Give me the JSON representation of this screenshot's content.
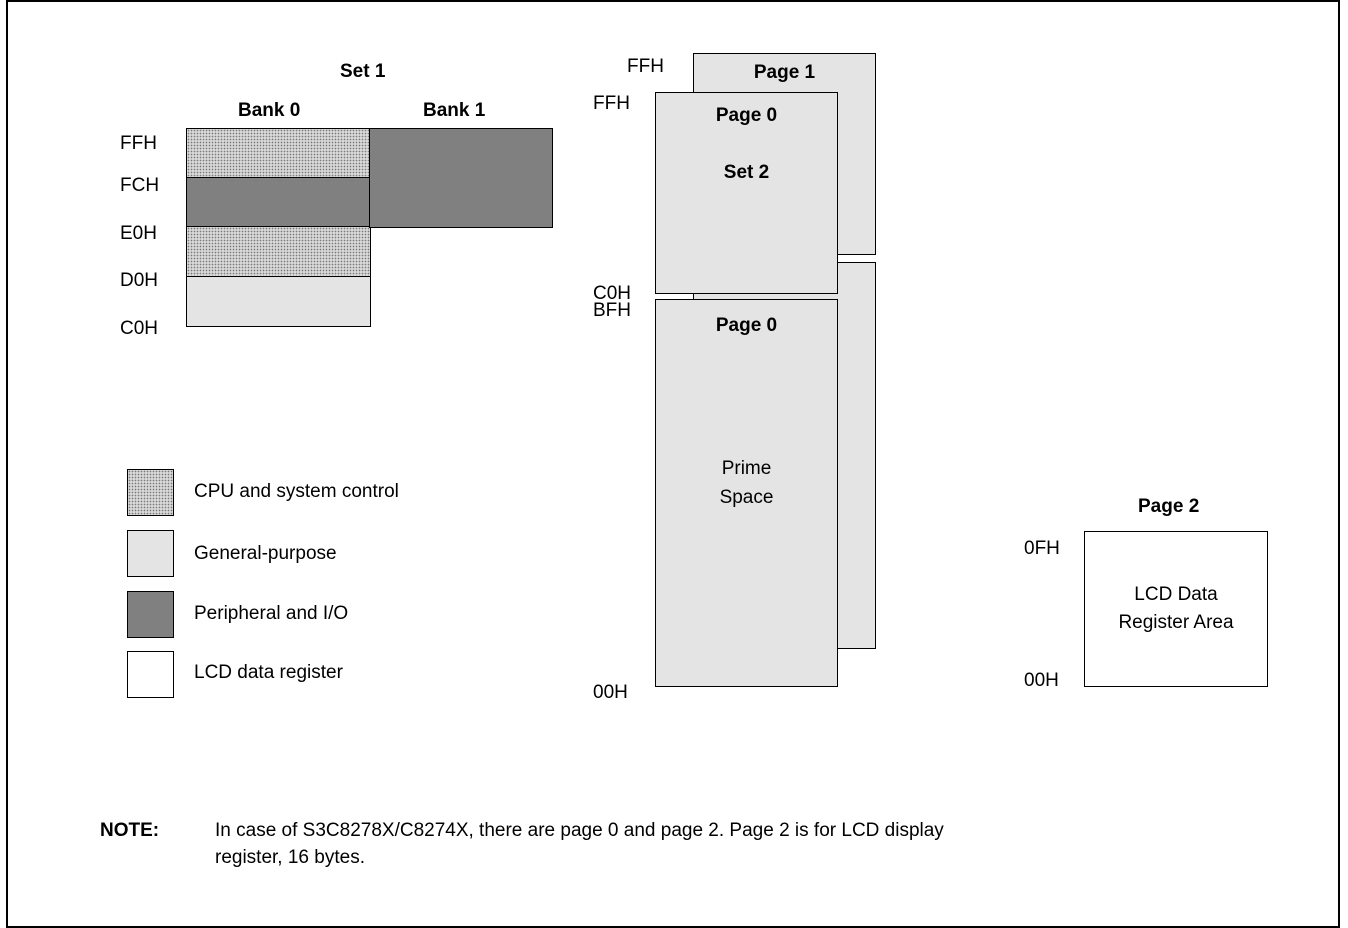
{
  "set1": {
    "title": "Set 1",
    "bank0": "Bank 0",
    "bank1": "Bank 1",
    "addresses": [
      "FFH",
      "FCH",
      "E0H",
      "D0H",
      "C0H"
    ]
  },
  "set2": {
    "page1_label": "Page 1",
    "page0_label": "Page 0",
    "set2_label": "Set 2",
    "addr_top_back": "FFH",
    "addr_top_front": "FFH",
    "addr_c0": "C0H",
    "addr_bf": "BFH",
    "addr_00": "00H"
  },
  "prime": {
    "page0_label": "Page 0",
    "line1": "Prime",
    "line2": "Space"
  },
  "page2": {
    "title": "Page 2",
    "addr_top": "0FH",
    "addr_bottom": "00H",
    "line1": "LCD Data",
    "line2": "Register Area"
  },
  "legend": [
    {
      "label": "CPU and system control",
      "style": "dotted"
    },
    {
      "label": "General-purpose",
      "style": "light"
    },
    {
      "label": "Peripheral and I/O",
      "style": "dark"
    },
    {
      "label": "LCD data register",
      "style": "white"
    }
  ],
  "note": {
    "label": "NOTE:",
    "line1": "In case of S3C8278X/C8274X, there are page 0 and page 2.  Page 2 is for LCD display",
    "line2": "register, 16 bytes."
  },
  "colors": {
    "dotted": "#d8d8d8",
    "light": "#e4e4e4",
    "dark": "#808080",
    "white": "#ffffff"
  }
}
